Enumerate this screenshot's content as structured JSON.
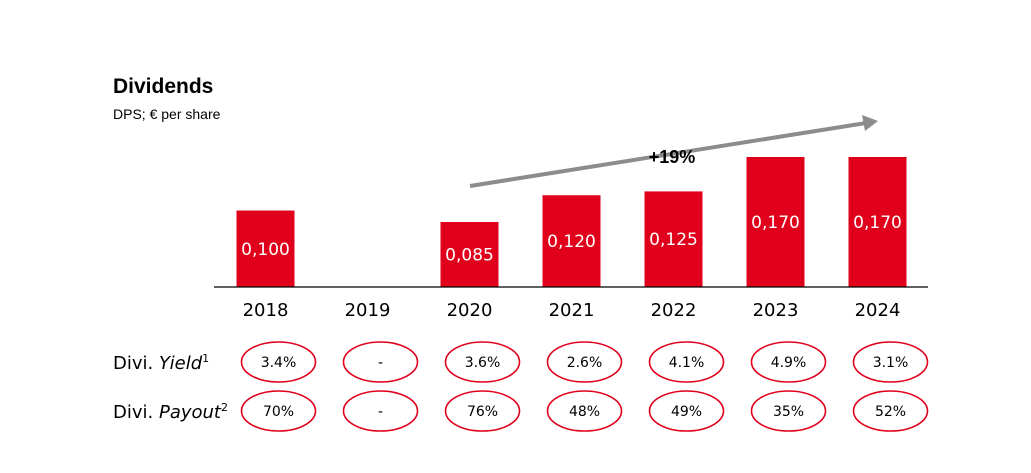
{
  "title": "Dividends",
  "subtitle": "DPS; € per share",
  "growth_label": "+19%",
  "colors": {
    "bar": "#e0001b",
    "arrow": "#8c8c8c",
    "pill_stroke": "#e0001b",
    "axis": "#000000"
  },
  "chart_data": {
    "type": "bar",
    "categories": [
      "2018",
      "2019",
      "2020",
      "2021",
      "2022",
      "2023",
      "2024"
    ],
    "values": [
      0.1,
      null,
      0.085,
      0.12,
      0.125,
      0.17,
      0.17
    ],
    "value_labels": [
      "0,100",
      "",
      "0,085",
      "0,120",
      "0,125",
      "0,170",
      "0,170"
    ],
    "ylim": [
      0,
      0.2
    ],
    "grid": false,
    "legend": "none"
  },
  "rows": [
    {
      "label": "Divi. ",
      "label_italic": "Yield",
      "footnote": "1",
      "values": [
        "3.4%",
        "-",
        "3.6%",
        "2.6%",
        "4.1%",
        "4.9%",
        "3.1%"
      ]
    },
    {
      "label": "Divi. ",
      "label_italic": "Payout",
      "footnote": "2",
      "values": [
        "70%",
        "-",
        "76%",
        "48%",
        "49%",
        "35%",
        "52%"
      ]
    }
  ]
}
